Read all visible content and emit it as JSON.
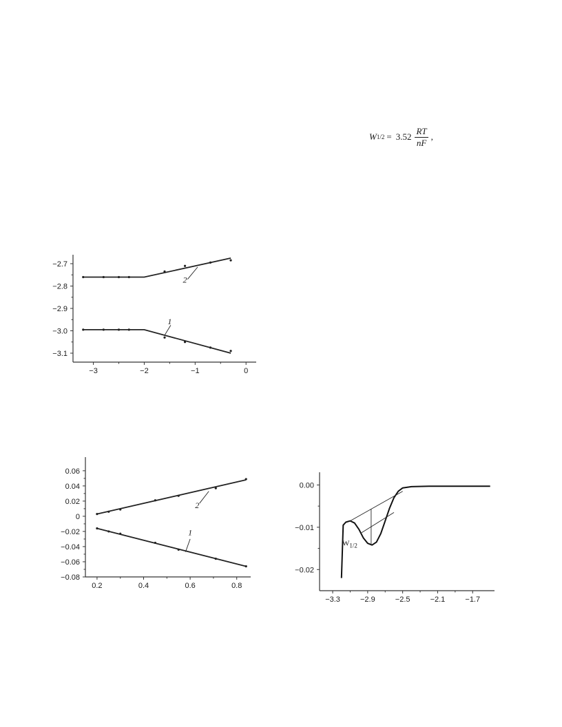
{
  "formula": {
    "lhs": "W",
    "lhs_sub": "1/2",
    "equals": "=",
    "coef": "3.52",
    "num": "RT",
    "den": "nF",
    "tail": ","
  },
  "chart_data": [
    {
      "type": "line",
      "xlim": [
        -3.4,
        0.2
      ],
      "ylim": [
        -3.14,
        -2.66
      ],
      "xticks": [
        -3,
        -2,
        -1,
        0
      ],
      "xtick_labels": [
        "−3",
        "−2",
        "−1",
        "0"
      ],
      "yticks": [
        -2.7,
        -2.8,
        -2.9,
        -3.0,
        -3.1
      ],
      "ytick_labels": [
        "−2.7",
        "−2.8",
        "−2.9",
        "−3.0",
        "−3.1"
      ],
      "series": [
        {
          "name": "2",
          "line": [
            [
              -3.2,
              -2.76
            ],
            [
              -2.0,
              -2.76
            ],
            [
              -0.3,
              -2.675
            ]
          ],
          "points": [
            [
              -3.2,
              -2.76
            ],
            [
              -2.8,
              -2.76
            ],
            [
              -2.5,
              -2.76
            ],
            [
              -2.3,
              -2.76
            ],
            [
              -1.6,
              -2.735
            ],
            [
              -1.2,
              -2.71
            ],
            [
              -0.7,
              -2.695
            ],
            [
              -0.3,
              -2.685
            ]
          ],
          "label_at": [
            -1.2,
            -2.785
          ],
          "leader": [
            [
              -1.15,
              -2.77
            ],
            [
              -0.95,
              -2.715
            ]
          ]
        },
        {
          "name": "1",
          "line": [
            [
              -3.2,
              -2.995
            ],
            [
              -2.0,
              -2.995
            ],
            [
              -0.3,
              -3.1
            ]
          ],
          "points": [
            [
              -3.2,
              -2.995
            ],
            [
              -2.8,
              -2.995
            ],
            [
              -2.5,
              -2.995
            ],
            [
              -2.3,
              -2.995
            ],
            [
              -1.6,
              -3.03
            ],
            [
              -1.2,
              -3.05
            ],
            [
              -0.7,
              -3.075
            ],
            [
              -0.3,
              -3.09
            ]
          ],
          "label_at": [
            -1.5,
            -2.97
          ],
          "leader": [
            [
              -1.48,
              -2.975
            ],
            [
              -1.6,
              -3.02
            ]
          ]
        }
      ]
    },
    {
      "type": "line",
      "xlim": [
        0.15,
        0.86
      ],
      "ylim": [
        -0.08,
        0.078
      ],
      "xticks": [
        0.2,
        0.4,
        0.6,
        0.8
      ],
      "xtick_labels": [
        "0.2",
        "0.4",
        "0.6",
        "0.8"
      ],
      "yticks": [
        0.06,
        0.04,
        0.02,
        0,
        -0.02,
        -0.04,
        -0.06,
        -0.08
      ],
      "ytick_labels": [
        "0.06",
        "0.04",
        "0.02",
        "0",
        "−0.02",
        "−0.04",
        "−0.06",
        "−0.08"
      ],
      "series": [
        {
          "name": "2",
          "line": [
            [
              0.2,
              0.003
            ],
            [
              0.84,
              0.048
            ]
          ],
          "points": [
            [
              0.2,
              0.003
            ],
            [
              0.25,
              0.006
            ],
            [
              0.3,
              0.009
            ],
            [
              0.45,
              0.021
            ],
            [
              0.55,
              0.027
            ],
            [
              0.71,
              0.037
            ],
            [
              0.84,
              0.049
            ]
          ],
          "label_at": [
            0.63,
            0.011
          ],
          "leader": [
            [
              0.64,
              0.017
            ],
            [
              0.68,
              0.033
            ]
          ]
        },
        {
          "name": "1",
          "line": [
            [
              0.2,
              -0.016
            ],
            [
              0.84,
              -0.066
            ]
          ],
          "points": [
            [
              0.2,
              -0.016
            ],
            [
              0.25,
              -0.02
            ],
            [
              0.3,
              -0.023
            ],
            [
              0.45,
              -0.035
            ],
            [
              0.55,
              -0.044
            ],
            [
              0.71,
              -0.056
            ],
            [
              0.84,
              -0.066
            ]
          ],
          "label_at": [
            0.6,
            -0.025
          ],
          "leader": [
            [
              0.6,
              -0.03
            ],
            [
              0.58,
              -0.047
            ]
          ]
        }
      ]
    },
    {
      "type": "line",
      "xlim": [
        -3.45,
        -1.45
      ],
      "ylim": [
        -0.025,
        0.003
      ],
      "xticks": [
        -3.3,
        -2.9,
        -2.5,
        -2.1,
        -1.7
      ],
      "xtick_labels": [
        "−3.3",
        "−2.9",
        "−2.5",
        "−2.1",
        "−1.7"
      ],
      "yticks": [
        0.0,
        -0.01,
        -0.02
      ],
      "ytick_labels": [
        "0.00",
        "−0.01",
        "−0.02"
      ],
      "curve": [
        [
          -3.2,
          -0.022
        ],
        [
          -3.19,
          -0.016
        ],
        [
          -3.18,
          -0.0095
        ],
        [
          -3.15,
          -0.0088
        ],
        [
          -3.1,
          -0.0085
        ],
        [
          -3.05,
          -0.009
        ],
        [
          -3.0,
          -0.0105
        ],
        [
          -2.95,
          -0.0125
        ],
        [
          -2.9,
          -0.0138
        ],
        [
          -2.85,
          -0.0142
        ],
        [
          -2.8,
          -0.0135
        ],
        [
          -2.75,
          -0.0115
        ],
        [
          -2.7,
          -0.0085
        ],
        [
          -2.65,
          -0.0055
        ],
        [
          -2.6,
          -0.003
        ],
        [
          -2.55,
          -0.0015
        ],
        [
          -2.5,
          -0.0007
        ],
        [
          -2.4,
          -0.0004
        ],
        [
          -2.2,
          -0.0003
        ],
        [
          -1.5,
          -0.0003
        ]
      ],
      "tangent": [
        [
          -3.1,
          -0.0085
        ],
        [
          -2.5,
          -0.0015
        ]
      ],
      "drop_line": [
        [
          -2.86,
          -0.0057
        ],
        [
          -2.86,
          -0.0142
        ]
      ],
      "half_line": [
        [
          -2.97,
          -0.0113
        ],
        [
          -2.6,
          -0.0065
        ]
      ],
      "annotation": "W",
      "annotation_sub": "1/2",
      "annotation_at": [
        -3.19,
        -0.0143
      ]
    }
  ]
}
